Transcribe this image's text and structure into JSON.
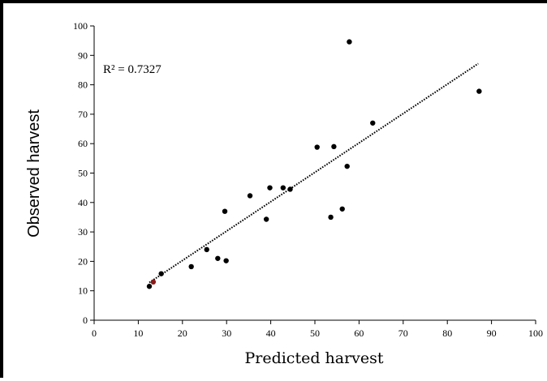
{
  "chart_data": {
    "type": "scatter",
    "xlabel": "Predicted harvest",
    "ylabel": "Observed harvest",
    "xlim": [
      0,
      100
    ],
    "ylim": [
      0,
      100
    ],
    "xticks": [
      0,
      10,
      20,
      30,
      40,
      50,
      60,
      70,
      80,
      90,
      100
    ],
    "yticks": [
      0,
      10,
      20,
      30,
      40,
      50,
      60,
      70,
      80,
      90,
      100
    ],
    "grid": false,
    "annotation": "R² = 0.7327",
    "trendline": {
      "type": "linear",
      "style": "dotted",
      "x": [
        12.5,
        87
      ],
      "y": [
        12.8,
        87.2
      ]
    },
    "points": [
      {
        "x": 12.5,
        "y": 11.5
      },
      {
        "x": 13.4,
        "y": 13.0,
        "color": "#8b1a1a"
      },
      {
        "x": 15.2,
        "y": 15.8
      },
      {
        "x": 22.0,
        "y": 18.2
      },
      {
        "x": 25.5,
        "y": 24.0
      },
      {
        "x": 28.0,
        "y": 21.0
      },
      {
        "x": 29.6,
        "y": 37.0
      },
      {
        "x": 29.9,
        "y": 20.2
      },
      {
        "x": 35.3,
        "y": 42.3
      },
      {
        "x": 39.0,
        "y": 34.3
      },
      {
        "x": 39.8,
        "y": 45.0
      },
      {
        "x": 42.8,
        "y": 45.0
      },
      {
        "x": 44.4,
        "y": 44.5
      },
      {
        "x": 50.5,
        "y": 58.8
      },
      {
        "x": 53.6,
        "y": 35.0
      },
      {
        "x": 54.3,
        "y": 59.0
      },
      {
        "x": 56.2,
        "y": 37.8
      },
      {
        "x": 57.3,
        "y": 52.3
      },
      {
        "x": 57.8,
        "y": 94.6
      },
      {
        "x": 63.1,
        "y": 67.0
      },
      {
        "x": 87.2,
        "y": 77.8
      }
    ]
  }
}
